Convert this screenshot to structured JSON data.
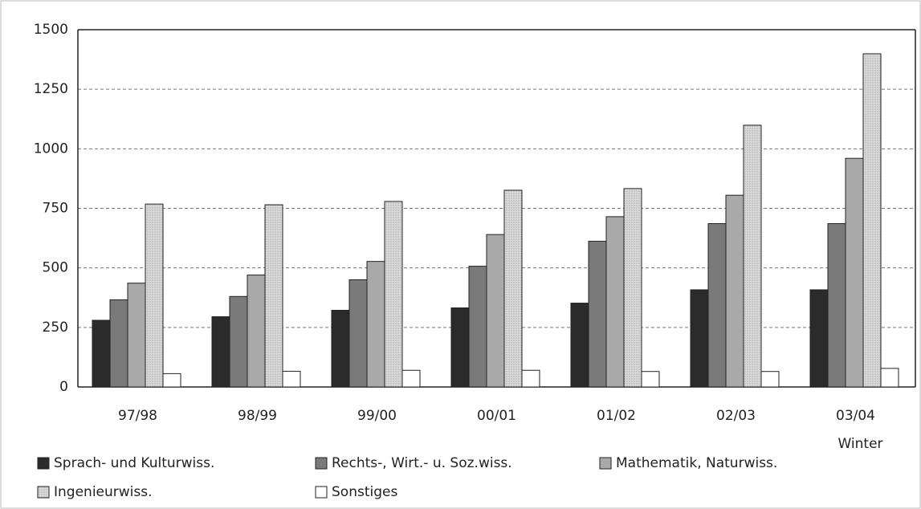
{
  "chart_data": {
    "type": "bar",
    "categories": [
      "97/98",
      "98/99",
      "99/00",
      "00/01",
      "01/02",
      "02/03",
      "03/04"
    ],
    "annotations": [
      "Winter"
    ],
    "series": [
      {
        "name": "Sprach- und Kulturwiss.",
        "color": "#2b2b2b",
        "values": [
          280,
          295,
          322,
          332,
          352,
          408,
          408
        ]
      },
      {
        "name": "Rechts-, Wirt.- u. Soz.wiss.",
        "color": "#7a7a7a",
        "values": [
          366,
          380,
          450,
          507,
          612,
          686,
          686
        ]
      },
      {
        "name": "Mathematik, Naturwiss.",
        "color": "#a9a9a9",
        "values": [
          436,
          470,
          527,
          640,
          715,
          805,
          960
        ]
      },
      {
        "name": "Ingenieurwiss.",
        "color": "#d9d9d9",
        "values": [
          768,
          765,
          779,
          826,
          833,
          1099,
          1399
        ]
      },
      {
        "name": "Sonstiges",
        "color": "#ffffff",
        "values": [
          56,
          66,
          70,
          70,
          65,
          65,
          78
        ]
      }
    ],
    "ylim": [
      0,
      1500
    ],
    "yticks": [
      0,
      250,
      500,
      750,
      1000,
      1250,
      1500
    ],
    "grid": true
  }
}
